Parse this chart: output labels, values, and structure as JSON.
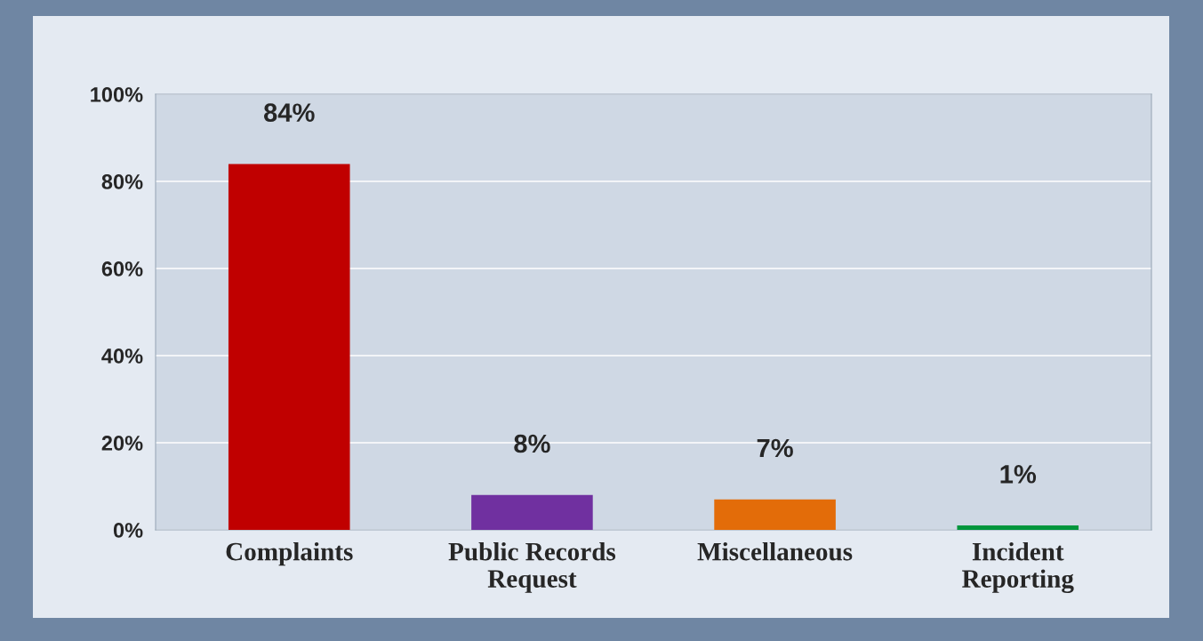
{
  "chart_data": {
    "type": "bar",
    "categories": [
      "Complaints",
      "Public Records\nRequest",
      "Miscellaneous",
      "Incident\nReporting"
    ],
    "values": [
      84,
      8,
      7,
      1
    ],
    "colors": [
      "#c00000",
      "#7030a0",
      "#e36c09",
      "#00963c"
    ],
    "value_labels": [
      "84%",
      "8%",
      "7%",
      "1%"
    ],
    "ylim": [
      0,
      100
    ],
    "yticks": [
      {
        "value": 0,
        "label": "0%"
      },
      {
        "value": 20,
        "label": "20%"
      },
      {
        "value": 40,
        "label": "40%"
      },
      {
        "value": 60,
        "label": "60%"
      },
      {
        "value": 80,
        "label": "80%"
      },
      {
        "value": 100,
        "label": "100%"
      }
    ],
    "grid": "y"
  }
}
